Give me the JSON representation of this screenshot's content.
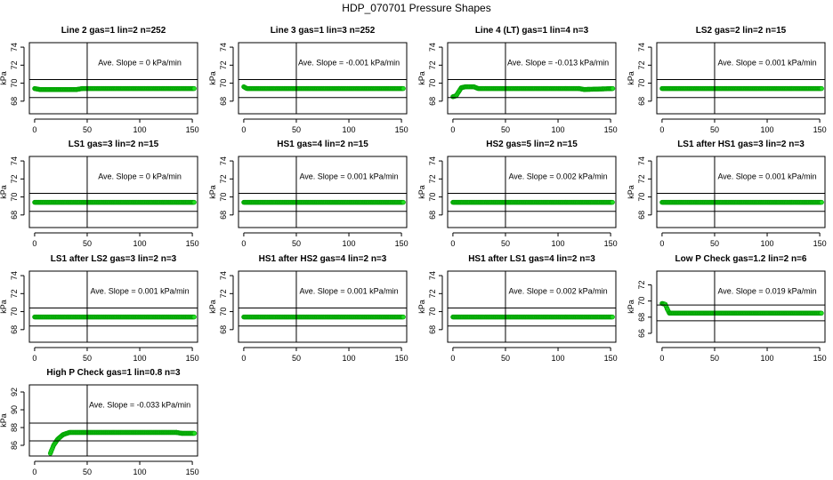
{
  "title": "HDP_070701  Pressure Shapes",
  "colors": {
    "points": "#22dd22",
    "point_outline": "#00a000",
    "lines": "#000000"
  },
  "chart_data": [
    {
      "type": "scatter",
      "title": "Line 2 gas=1 lin=2 n=252",
      "ylabel": "kPa",
      "slope_label": "Ave. Slope =  0  kPa/min",
      "xlim": [
        -5,
        155
      ],
      "ylim": [
        66.6,
        74.5
      ],
      "xticks": [
        0,
        50,
        100,
        150
      ],
      "yticks": [
        68,
        70,
        72,
        74
      ],
      "hlines": [
        70.4,
        68.4
      ],
      "vline": 50,
      "points": [
        [
          0,
          69.4
        ],
        [
          5,
          69.3
        ],
        [
          40,
          69.3
        ],
        [
          45,
          69.4
        ],
        [
          152,
          69.4
        ]
      ]
    },
    {
      "type": "scatter",
      "title": "Line 3 gas=1 lin=3 n=252",
      "ylabel": "kPa",
      "slope_label": "Ave. Slope =  -0.001  kPa/min",
      "xlim": [
        -5,
        155
      ],
      "ylim": [
        66.6,
        74.5
      ],
      "xticks": [
        0,
        50,
        100,
        150
      ],
      "yticks": [
        68,
        70,
        72,
        74
      ],
      "hlines": [
        70.4,
        68.4
      ],
      "vline": 50,
      "points": [
        [
          0,
          69.6
        ],
        [
          3,
          69.4
        ],
        [
          152,
          69.4
        ]
      ]
    },
    {
      "type": "scatter",
      "title": "Line 4 (LT) gas=1 lin=4 n=3",
      "ylabel": "kPa",
      "slope_label": "Ave. Slope =  -0.013  kPa/min",
      "xlim": [
        -5,
        155
      ],
      "ylim": [
        66.6,
        74.5
      ],
      "xticks": [
        0,
        50,
        100,
        150
      ],
      "yticks": [
        68,
        70,
        72,
        74
      ],
      "hlines": [
        70.4,
        68.4
      ],
      "vline": 50,
      "points": [
        [
          0,
          68.5
        ],
        [
          3,
          68.6
        ],
        [
          8,
          69.5
        ],
        [
          12,
          69.6
        ],
        [
          20,
          69.6
        ],
        [
          24,
          69.4
        ],
        [
          120,
          69.4
        ],
        [
          125,
          69.3
        ],
        [
          152,
          69.4
        ]
      ]
    },
    {
      "type": "scatter",
      "title": "LS2 gas=2 lin=2 n=15",
      "ylabel": "kPa",
      "slope_label": "Ave. Slope =  0.001  kPa/min",
      "xlim": [
        -5,
        155
      ],
      "ylim": [
        66.6,
        74.5
      ],
      "xticks": [
        0,
        50,
        100,
        150
      ],
      "yticks": [
        68,
        70,
        72,
        74
      ],
      "hlines": [
        70.4,
        68.4
      ],
      "vline": 50,
      "points": [
        [
          0,
          69.4
        ],
        [
          152,
          69.4
        ]
      ]
    },
    {
      "type": "scatter",
      "title": "LS1 gas=3 lin=2 n=15",
      "ylabel": "kPa",
      "slope_label": "Ave. Slope =  0  kPa/min",
      "xlim": [
        -5,
        155
      ],
      "ylim": [
        66.6,
        74.5
      ],
      "xticks": [
        0,
        50,
        100,
        150
      ],
      "yticks": [
        68,
        70,
        72,
        74
      ],
      "hlines": [
        70.4,
        68.4
      ],
      "vline": 50,
      "points": [
        [
          0,
          69.4
        ],
        [
          152,
          69.4
        ]
      ]
    },
    {
      "type": "scatter",
      "title": "HS1 gas=4 lin=2 n=15",
      "ylabel": "kPa",
      "slope_label": "Ave. Slope =  0.001  kPa/min",
      "xlim": [
        -5,
        155
      ],
      "ylim": [
        66.6,
        74.5
      ],
      "xticks": [
        0,
        50,
        100,
        150
      ],
      "yticks": [
        68,
        70,
        72,
        74
      ],
      "hlines": [
        70.4,
        68.4
      ],
      "vline": 50,
      "points": [
        [
          0,
          69.4
        ],
        [
          152,
          69.4
        ]
      ]
    },
    {
      "type": "scatter",
      "title": "HS2 gas=5 lin=2 n=15",
      "ylabel": "kPa",
      "slope_label": "Ave. Slope =  0.002  kPa/min",
      "xlim": [
        -5,
        155
      ],
      "ylim": [
        66.6,
        74.5
      ],
      "xticks": [
        0,
        50,
        100,
        150
      ],
      "yticks": [
        68,
        70,
        72,
        74
      ],
      "hlines": [
        70.4,
        68.4
      ],
      "vline": 50,
      "points": [
        [
          0,
          69.4
        ],
        [
          152,
          69.4
        ]
      ]
    },
    {
      "type": "scatter",
      "title": "LS1 after HS1 gas=3 lin=2 n=3",
      "ylabel": "kPa",
      "slope_label": "Ave. Slope =  0.001  kPa/min",
      "xlim": [
        -5,
        155
      ],
      "ylim": [
        66.6,
        74.5
      ],
      "xticks": [
        0,
        50,
        100,
        150
      ],
      "yticks": [
        68,
        70,
        72,
        74
      ],
      "hlines": [
        70.4,
        68.4
      ],
      "vline": 50,
      "points": [
        [
          0,
          69.4
        ],
        [
          152,
          69.4
        ]
      ]
    },
    {
      "type": "scatter",
      "title": "LS1 after LS2 gas=3 lin=2 n=3",
      "ylabel": "kPa",
      "slope_label": "Ave. Slope =  0.001  kPa/min",
      "xlim": [
        -5,
        155
      ],
      "ylim": [
        66.6,
        74.5
      ],
      "xticks": [
        0,
        50,
        100,
        150
      ],
      "yticks": [
        68,
        70,
        72,
        74
      ],
      "hlines": [
        70.4,
        68.4
      ],
      "vline": 50,
      "points": [
        [
          0,
          69.4
        ],
        [
          152,
          69.4
        ]
      ]
    },
    {
      "type": "scatter",
      "title": "HS1 after HS2 gas=4 lin=2 n=3",
      "ylabel": "kPa",
      "slope_label": "Ave. Slope =  0.001  kPa/min",
      "xlim": [
        -5,
        155
      ],
      "ylim": [
        66.6,
        74.5
      ],
      "xticks": [
        0,
        50,
        100,
        150
      ],
      "yticks": [
        68,
        70,
        72,
        74
      ],
      "hlines": [
        70.4,
        68.4
      ],
      "vline": 50,
      "points": [
        [
          0,
          69.4
        ],
        [
          152,
          69.4
        ]
      ]
    },
    {
      "type": "scatter",
      "title": "HS1 after LS1 gas=4 lin=2 n=3",
      "ylabel": "kPa",
      "slope_label": "Ave. Slope =  0.002  kPa/min",
      "xlim": [
        -5,
        155
      ],
      "ylim": [
        66.6,
        74.5
      ],
      "xticks": [
        0,
        50,
        100,
        150
      ],
      "yticks": [
        68,
        70,
        72,
        74
      ],
      "hlines": [
        70.4,
        68.4
      ],
      "vline": 50,
      "points": [
        [
          0,
          69.4
        ],
        [
          152,
          69.4
        ]
      ]
    },
    {
      "type": "scatter",
      "title": "Low P Check gas=1.2 lin=2 n=6",
      "ylabel": "kPa",
      "slope_label": "Ave. Slope =  0.019  kPa/min",
      "xlim": [
        -5,
        155
      ],
      "ylim": [
        64.9,
        73.7
      ],
      "xticks": [
        0,
        50,
        100,
        150
      ],
      "yticks": [
        66,
        68,
        70,
        72
      ],
      "hlines": [
        69.5,
        67.55
      ],
      "vline": 50,
      "points": [
        [
          0,
          69.7
        ],
        [
          3,
          69.6
        ],
        [
          5,
          69.0
        ],
        [
          7,
          68.5
        ],
        [
          152,
          68.5
        ]
      ]
    },
    {
      "type": "scatter",
      "title": "High P Check gas=1 lin=0.8 n=3",
      "ylabel": "kPa",
      "slope_label": "Ave. Slope =  -0.033  kPa/min",
      "xlim": [
        -5,
        155
      ],
      "ylim": [
        84.8,
        92.8
      ],
      "xticks": [
        0,
        50,
        100,
        150
      ],
      "yticks": [
        86,
        88,
        90,
        92
      ],
      "hlines": [
        88.5,
        86.5
      ],
      "vline": 50,
      "points": [
        [
          15,
          85.1
        ],
        [
          18,
          86.0
        ],
        [
          22,
          86.7
        ],
        [
          27,
          87.2
        ],
        [
          33,
          87.45
        ],
        [
          135,
          87.45
        ],
        [
          140,
          87.35
        ],
        [
          152,
          87.35
        ]
      ]
    }
  ]
}
